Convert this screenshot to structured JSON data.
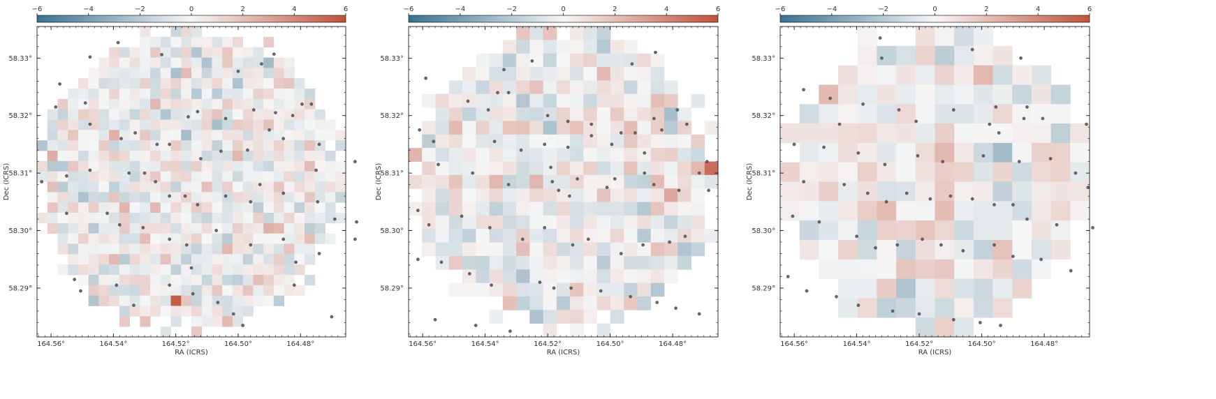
{
  "figure": {
    "colorbar": {
      "min": -6,
      "max": 6,
      "ticks": [
        -6,
        -4,
        -2,
        0,
        2,
        4,
        6
      ],
      "tick_labels": [
        "−6",
        "−4",
        "−2",
        "0",
        "2",
        "4",
        "6"
      ],
      "cmap": [
        "#3a7190",
        "#f6f6f6",
        "#c0523b"
      ]
    },
    "point_color": "#555555",
    "xlabel": "RA (ICRS)",
    "ylabel": "Dec (ICRS)"
  },
  "chart_data": [
    {
      "type": "heatmap",
      "panel": 1,
      "xlabel": "RA (ICRS)",
      "ylabel": "Dec (ICRS)",
      "x_ticks": [
        164.56,
        164.54,
        164.52,
        164.5,
        164.48
      ],
      "x_tick_labels": [
        "164.56°",
        "164.54°",
        "164.52°",
        "164.50°",
        "164.48°"
      ],
      "y_ticks": [
        58.29,
        58.3,
        58.31,
        58.32,
        58.33
      ],
      "y_tick_labels": [
        "58.29°",
        "58.30°",
        "58.31°",
        "58.32°",
        "58.33°"
      ],
      "xlim": [
        164.5645,
        164.4655
      ],
      "ylim": [
        58.2815,
        58.3355
      ],
      "grid_cols": 30,
      "grid_rows": 30,
      "color_range": [
        -6,
        6
      ],
      "highlight_cells": [
        {
          "ra": 164.5187,
          "dec": 58.288,
          "value": 5.6
        },
        {
          "ra": 164.467,
          "dec": 58.318,
          "value": 5.2
        },
        {
          "ra": 164.528,
          "dec": 58.304,
          "value": 2.2
        },
        {
          "ra": 164.558,
          "dec": 58.307,
          "value": 2.0
        }
      ],
      "points_ra_dec": [
        [
          164.5385,
          58.3327
        ],
        [
          164.5245,
          58.3306
        ],
        [
          164.4885,
          58.3307
        ],
        [
          164.5,
          58.3277
        ],
        [
          164.4925,
          58.329
        ],
        [
          164.5475,
          58.3302
        ],
        [
          164.5572,
          58.3255
        ],
        [
          164.5585,
          58.3215
        ],
        [
          164.549,
          58.3222
        ],
        [
          164.516,
          58.3198
        ],
        [
          164.513,
          58.3207
        ],
        [
          164.504,
          58.3195
        ],
        [
          164.495,
          58.321
        ],
        [
          164.488,
          58.3205
        ],
        [
          164.4765,
          58.322
        ],
        [
          164.4795,
          58.322
        ],
        [
          164.4825,
          58.32
        ],
        [
          164.5475,
          58.3185
        ],
        [
          164.533,
          58.317
        ],
        [
          164.5375,
          58.316
        ],
        [
          164.526,
          58.315
        ],
        [
          164.522,
          58.315
        ],
        [
          164.512,
          58.3125
        ],
        [
          164.5055,
          58.3138
        ],
        [
          164.497,
          58.314
        ],
        [
          164.49,
          58.3175
        ],
        [
          164.4855,
          58.316
        ],
        [
          164.474,
          58.315
        ],
        [
          164.475,
          58.3105
        ],
        [
          164.4625,
          58.312
        ],
        [
          164.563,
          58.3085
        ],
        [
          164.555,
          58.3095
        ],
        [
          164.5475,
          58.3105
        ],
        [
          164.535,
          58.31
        ],
        [
          164.53,
          58.31
        ],
        [
          164.5265,
          58.3085
        ],
        [
          164.522,
          58.306
        ],
        [
          164.517,
          58.306
        ],
        [
          164.513,
          58.3045
        ],
        [
          164.504,
          58.306
        ],
        [
          164.496,
          58.305
        ],
        [
          164.493,
          58.308
        ],
        [
          164.4855,
          58.3065
        ],
        [
          164.4745,
          58.305
        ],
        [
          164.469,
          58.302
        ],
        [
          164.462,
          58.3015
        ],
        [
          164.555,
          58.303
        ],
        [
          164.542,
          58.303
        ],
        [
          164.538,
          58.301
        ],
        [
          164.5305,
          58.3005
        ],
        [
          164.522,
          58.2985
        ],
        [
          164.5165,
          58.2975
        ],
        [
          164.515,
          58.2935
        ],
        [
          164.507,
          58.3
        ],
        [
          164.496,
          58.2975
        ],
        [
          164.4855,
          58.2985
        ],
        [
          164.4815,
          58.2945
        ],
        [
          164.474,
          58.296
        ],
        [
          164.4625,
          58.2985
        ],
        [
          164.5525,
          58.2915
        ],
        [
          164.5505,
          58.2895
        ],
        [
          164.539,
          58.2905
        ],
        [
          164.5335,
          58.287
        ],
        [
          164.522,
          58.2905
        ],
        [
          164.5145,
          58.289
        ],
        [
          164.5065,
          58.2875
        ],
        [
          164.5015,
          58.2855
        ],
        [
          164.4985,
          58.2835
        ],
        [
          164.482,
          58.2905
        ],
        [
          164.47,
          58.285
        ]
      ]
    },
    {
      "type": "heatmap",
      "panel": 2,
      "xlabel": "RA (ICRS)",
      "ylabel": "Dec (ICRS)",
      "x_ticks": [
        164.56,
        164.54,
        164.52,
        164.5,
        164.48
      ],
      "x_tick_labels": [
        "164.56°",
        "164.54°",
        "164.52°",
        "164.50°",
        "164.48°"
      ],
      "y_ticks": [
        58.29,
        58.3,
        58.31,
        58.32,
        58.33
      ],
      "y_tick_labels": [
        "58.29°",
        "58.30°",
        "58.31°",
        "58.32°",
        "58.33°"
      ],
      "xlim": [
        164.5645,
        164.4655
      ],
      "ylim": [
        58.2815,
        58.3355
      ],
      "grid_cols": 23,
      "grid_rows": 23,
      "color_range": [
        -6,
        6
      ],
      "highlight_cells": [
        {
          "ra": 164.4725,
          "dec": 58.3195,
          "value": 5.3
        },
        {
          "ra": 164.4665,
          "dec": 58.3105,
          "value": 5.0
        },
        {
          "ra": 164.5295,
          "dec": 58.2975,
          "value": 2.0
        },
        {
          "ra": 164.548,
          "dec": 58.3175,
          "value": 2.2
        }
      ],
      "points_ra_dec": [
        [
          164.4855,
          58.331
        ],
        [
          164.493,
          58.329
        ],
        [
          164.525,
          58.3295
        ],
        [
          164.534,
          58.328
        ],
        [
          164.559,
          58.3265
        ],
        [
          164.536,
          58.324
        ],
        [
          164.5325,
          58.324
        ],
        [
          164.5455,
          58.3225
        ],
        [
          164.539,
          58.321
        ],
        [
          164.52,
          58.32
        ],
        [
          164.5135,
          58.319
        ],
        [
          164.506,
          58.3185
        ],
        [
          164.4965,
          58.317
        ],
        [
          164.486,
          58.3195
        ],
        [
          164.4835,
          58.3175
        ],
        [
          164.4785,
          58.321
        ],
        [
          164.4755,
          58.3185
        ],
        [
          164.561,
          58.3175
        ],
        [
          164.5565,
          58.3155
        ],
        [
          164.537,
          58.3155
        ],
        [
          164.5285,
          58.314
        ],
        [
          164.521,
          58.315
        ],
        [
          164.5135,
          58.3145
        ],
        [
          164.506,
          58.3165
        ],
        [
          164.4995,
          58.315
        ],
        [
          164.492,
          58.317
        ],
        [
          164.489,
          58.3135
        ],
        [
          164.469,
          58.312
        ],
        [
          164.4715,
          58.31
        ],
        [
          164.555,
          58.3115
        ],
        [
          164.544,
          58.31
        ],
        [
          164.5325,
          58.308
        ],
        [
          164.519,
          58.311
        ],
        [
          164.5185,
          58.3085
        ],
        [
          164.5165,
          58.307
        ],
        [
          164.513,
          58.306
        ],
        [
          164.5105,
          58.309
        ],
        [
          164.501,
          58.3075
        ],
        [
          164.4985,
          58.309
        ],
        [
          164.489,
          58.31
        ],
        [
          164.486,
          58.308
        ],
        [
          164.478,
          58.307
        ],
        [
          164.4685,
          58.307
        ],
        [
          164.5615,
          58.3035
        ],
        [
          164.558,
          58.301
        ],
        [
          164.5475,
          58.3025
        ],
        [
          164.5385,
          58.3005
        ],
        [
          164.528,
          58.2985
        ],
        [
          164.521,
          58.3005
        ],
        [
          164.512,
          58.2975
        ],
        [
          164.507,
          58.2985
        ],
        [
          164.4965,
          58.296
        ],
        [
          164.4895,
          58.2975
        ],
        [
          164.481,
          58.298
        ],
        [
          164.476,
          58.299
        ],
        [
          164.5615,
          58.295
        ],
        [
          164.554,
          58.2945
        ],
        [
          164.545,
          58.2925
        ],
        [
          164.538,
          58.2905
        ],
        [
          164.5225,
          58.291
        ],
        [
          164.518,
          58.29
        ],
        [
          164.5125,
          58.29
        ],
        [
          164.503,
          58.2895
        ],
        [
          164.4935,
          58.2885
        ],
        [
          164.485,
          58.2875
        ],
        [
          164.479,
          58.2865
        ],
        [
          164.4715,
          58.2855
        ],
        [
          164.556,
          58.2845
        ],
        [
          164.543,
          58.2835
        ],
        [
          164.532,
          58.2825
        ]
      ]
    },
    {
      "type": "heatmap",
      "panel": 3,
      "xlabel": "RA (ICRS)",
      "ylabel": "Dec (ICRS)",
      "x_ticks": [
        164.56,
        164.54,
        164.52,
        164.5,
        164.48
      ],
      "x_tick_labels": [
        "164.56°",
        "164.54°",
        "164.52°",
        "164.50°",
        "164.48°"
      ],
      "y_ticks": [
        58.29,
        58.3,
        58.31,
        58.32,
        58.33
      ],
      "y_tick_labels": [
        "58.29°",
        "58.30°",
        "58.31°",
        "58.32°",
        "58.33°"
      ],
      "xlim": [
        164.5645,
        164.4655
      ],
      "ylim": [
        58.2815,
        58.3355
      ],
      "grid_cols": 16,
      "grid_rows": 16,
      "color_range": [
        -6,
        6
      ],
      "highlight_cells": [
        {
          "ra": 164.5265,
          "dec": 58.2925,
          "value": 1.8
        },
        {
          "ra": 164.515,
          "dec": 58.3085,
          "value": 1.6
        }
      ],
      "points_ra_dec": [
        [
          164.503,
          58.3315
        ],
        [
          164.4875,
          58.33
        ],
        [
          164.5325,
          58.3335
        ],
        [
          164.532,
          58.33
        ],
        [
          164.557,
          58.3245
        ],
        [
          164.5485,
          58.323
        ],
        [
          164.538,
          58.322
        ],
        [
          164.5265,
          58.321
        ],
        [
          164.509,
          58.321
        ],
        [
          164.4955,
          58.3215
        ],
        [
          164.4855,
          58.3215
        ],
        [
          164.4865,
          58.3195
        ],
        [
          164.5455,
          58.3185
        ],
        [
          164.521,
          58.319
        ],
        [
          164.4975,
          58.3185
        ],
        [
          164.4945,
          58.317
        ],
        [
          164.4805,
          58.3195
        ],
        [
          164.4665,
          58.3185
        ],
        [
          164.56,
          58.315
        ],
        [
          164.5505,
          58.3145
        ],
        [
          164.5395,
          58.3135
        ],
        [
          164.531,
          58.3115
        ],
        [
          164.5205,
          58.313
        ],
        [
          164.5125,
          58.312
        ],
        [
          164.4995,
          58.313
        ],
        [
          164.488,
          58.312
        ],
        [
          164.478,
          58.3125
        ],
        [
          164.47,
          58.31
        ],
        [
          164.466,
          58.3075
        ],
        [
          164.557,
          58.3085
        ],
        [
          164.544,
          58.308
        ],
        [
          164.5365,
          58.3065
        ],
        [
          164.5305,
          58.305
        ],
        [
          164.524,
          58.3065
        ],
        [
          164.5165,
          58.3055
        ],
        [
          164.51,
          58.306
        ],
        [
          164.503,
          58.3055
        ],
        [
          164.496,
          58.3045
        ],
        [
          164.49,
          58.3045
        ],
        [
          164.4855,
          58.302
        ],
        [
          164.476,
          58.301
        ],
        [
          164.4645,
          58.3005
        ],
        [
          164.5605,
          58.3025
        ],
        [
          164.552,
          58.3015
        ],
        [
          164.54,
          58.299
        ],
        [
          164.534,
          58.297
        ],
        [
          164.527,
          58.2975
        ],
        [
          164.519,
          58.2985
        ],
        [
          164.513,
          58.2975
        ],
        [
          164.506,
          58.2965
        ],
        [
          164.496,
          58.2975
        ],
        [
          164.49,
          58.2955
        ],
        [
          164.481,
          58.295
        ],
        [
          164.4715,
          58.293
        ],
        [
          164.562,
          58.292
        ],
        [
          164.556,
          58.2895
        ],
        [
          164.5465,
          58.2885
        ],
        [
          164.5395,
          58.287
        ],
        [
          164.5285,
          58.286
        ],
        [
          164.52,
          58.2855
        ],
        [
          164.509,
          58.2845
        ],
        [
          164.5005,
          58.284
        ],
        [
          164.494,
          58.2835
        ]
      ]
    }
  ]
}
